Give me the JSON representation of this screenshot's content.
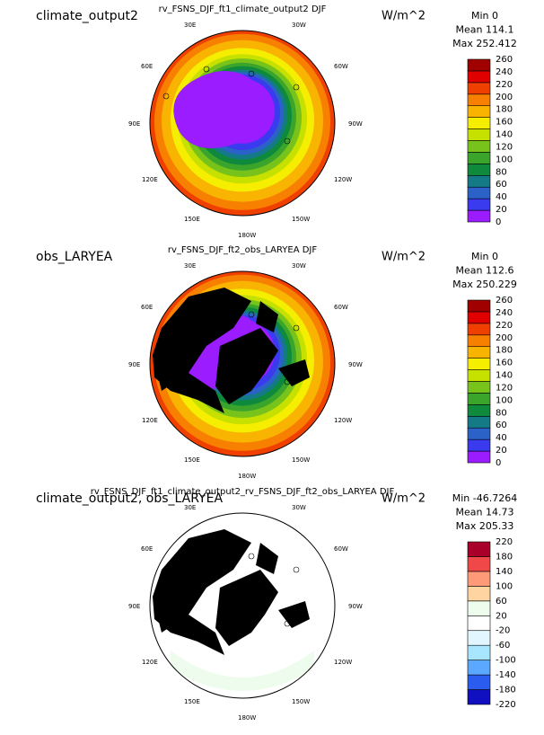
{
  "panels": [
    {
      "label": "climate_output2",
      "title": "rv_FSNS_DJF_ft1_climate_output2  DJF",
      "units": "W/m^2",
      "stats": [
        "Min 0",
        "Mean 114.1",
        "Max 252.412"
      ],
      "lon_labels": [
        "30E",
        "30W",
        "60E",
        "60W",
        "90E",
        "90W",
        "120E",
        "120W",
        "150E",
        "150W",
        "180W"
      ],
      "colorbar": {
        "levels": [
          0,
          20,
          40,
          60,
          80,
          100,
          120,
          140,
          160,
          180,
          200,
          220,
          240,
          260
        ],
        "colors": [
          "#9a1cff",
          "#3a3aee",
          "#2a62c8",
          "#137a86",
          "#0f8a3c",
          "#3aa52a",
          "#78c21c",
          "#c6e000",
          "#f6ee00",
          "#f8b400",
          "#f88000",
          "#f04000",
          "#e00000",
          "#a00000"
        ]
      }
    },
    {
      "label": "obs_LARYEA",
      "title": "rv_FSNS_DJF_ft2_obs_LARYEA  DJF",
      "units": "W/m^2",
      "stats": [
        "Min 0",
        "Mean 112.6",
        "Max 250.229"
      ],
      "lon_labels": [
        "30E",
        "30W",
        "60E",
        "60W",
        "90E",
        "90W",
        "120E",
        "120W",
        "150E",
        "150W",
        "180W"
      ],
      "colorbar": {
        "levels": [
          0,
          20,
          40,
          60,
          80,
          100,
          120,
          140,
          160,
          180,
          200,
          220,
          240,
          260
        ],
        "colors": [
          "#9a1cff",
          "#3a3aee",
          "#2a62c8",
          "#137a86",
          "#0f8a3c",
          "#3aa52a",
          "#78c21c",
          "#c6e000",
          "#f6ee00",
          "#f8b400",
          "#f88000",
          "#f04000",
          "#e00000",
          "#a00000"
        ]
      }
    },
    {
      "label": "climate_output2, obs_LARYEA",
      "title": "rv_FSNS_DJF_ft1_climate_output2_rv_FSNS_DJF_ft2_obs_LARYEA  DJF",
      "units": "W/m^2",
      "stats": [
        "Min -46.7264",
        "Mean 14.73",
        "Max 205.33"
      ],
      "lon_labels": [
        "30E",
        "30W",
        "60E",
        "60W",
        "90E",
        "90W",
        "120E",
        "120W",
        "150E",
        "150W",
        "180W"
      ],
      "colorbar": {
        "levels": [
          -220,
          -180,
          -140,
          -100,
          -60,
          -20,
          20,
          60,
          100,
          140,
          180,
          220
        ],
        "colors": [
          "#1010c0",
          "#2a5cf0",
          "#5aa8ff",
          "#a8e6ff",
          "#e2f6ff",
          "#ffffff",
          "#eefcee",
          "#ffd4a0",
          "#ff9a78",
          "#f04848",
          "#a80028"
        ]
      }
    }
  ]
}
